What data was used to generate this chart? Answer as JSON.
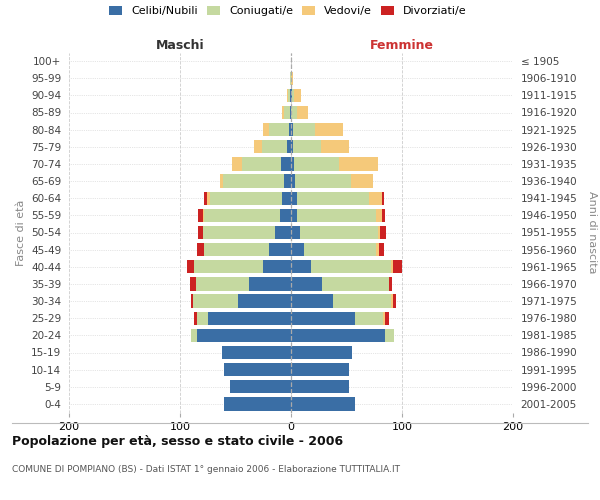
{
  "age_groups": [
    "0-4",
    "5-9",
    "10-14",
    "15-19",
    "20-24",
    "25-29",
    "30-34",
    "35-39",
    "40-44",
    "45-49",
    "50-54",
    "55-59",
    "60-64",
    "65-69",
    "70-74",
    "75-79",
    "80-84",
    "85-89",
    "90-94",
    "95-99",
    "100+"
  ],
  "birth_years": [
    "2001-2005",
    "1996-2000",
    "1991-1995",
    "1986-1990",
    "1981-1985",
    "1976-1980",
    "1971-1975",
    "1966-1970",
    "1961-1965",
    "1956-1960",
    "1951-1955",
    "1946-1950",
    "1941-1945",
    "1936-1940",
    "1931-1935",
    "1926-1930",
    "1921-1925",
    "1916-1920",
    "1911-1915",
    "1906-1910",
    "≤ 1905"
  ],
  "maschi": {
    "celibi": [
      60,
      55,
      60,
      62,
      85,
      75,
      48,
      38,
      25,
      20,
      14,
      10,
      8,
      6,
      9,
      4,
      2,
      1,
      1,
      0,
      0
    ],
    "coniugati": [
      0,
      0,
      0,
      0,
      5,
      10,
      40,
      48,
      62,
      58,
      65,
      68,
      65,
      55,
      35,
      22,
      18,
      5,
      2,
      1,
      0
    ],
    "vedovi": [
      0,
      0,
      0,
      0,
      0,
      0,
      0,
      0,
      0,
      0,
      0,
      1,
      3,
      3,
      9,
      7,
      5,
      2,
      1,
      0,
      0
    ],
    "divorziati": [
      0,
      0,
      0,
      0,
      0,
      2,
      2,
      5,
      7,
      7,
      5,
      5,
      2,
      0,
      0,
      0,
      0,
      0,
      0,
      0,
      0
    ]
  },
  "femmine": {
    "nubili": [
      58,
      52,
      52,
      55,
      85,
      58,
      38,
      28,
      18,
      12,
      8,
      5,
      5,
      4,
      3,
      2,
      2,
      0,
      1,
      0,
      0
    ],
    "coniugate": [
      0,
      0,
      0,
      0,
      8,
      25,
      52,
      60,
      72,
      65,
      70,
      72,
      65,
      50,
      40,
      25,
      20,
      5,
      2,
      0,
      0
    ],
    "vedove": [
      0,
      0,
      0,
      0,
      0,
      2,
      2,
      0,
      2,
      2,
      2,
      5,
      12,
      20,
      35,
      25,
      25,
      10,
      6,
      2,
      0
    ],
    "divorziate": [
      0,
      0,
      0,
      0,
      0,
      3,
      3,
      3,
      8,
      5,
      6,
      3,
      2,
      0,
      0,
      0,
      0,
      0,
      0,
      0,
      0
    ]
  },
  "colors": {
    "celibi": "#3a6ea5",
    "coniugati": "#c5d9a0",
    "vedovi": "#f5c97a",
    "divorziati": "#cc2222"
  },
  "xlim": 200,
  "title": "Popolazione per età, sesso e stato civile - 2006",
  "subtitle": "COMUNE DI POMPIANO (BS) - Dati ISTAT 1° gennaio 2006 - Elaborazione TUTTITALIA.IT",
  "ylabel_left": "Fasce di età",
  "ylabel_right": "Anni di nascita",
  "xlabel_left": "Maschi",
  "xlabel_right": "Femmine",
  "legend_labels": [
    "Celibi/Nubili",
    "Coniugati/e",
    "Vedovi/e",
    "Divorziati/e"
  ],
  "bg_color": "#ffffff",
  "grid_color": "#cccccc"
}
